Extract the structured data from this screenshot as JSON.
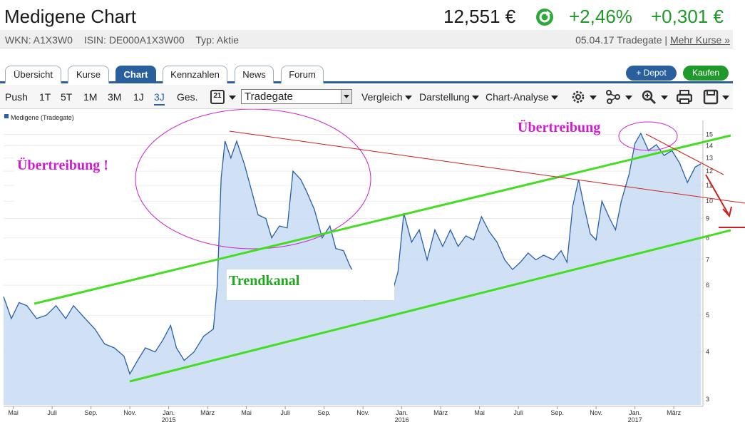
{
  "header": {
    "title": "Medigene Chart",
    "price": "12,551 €",
    "change_pct": "+2,46%",
    "change_abs": "+0,301 €",
    "status_icon": "refresh-icon",
    "up_color": "#1f9a2a"
  },
  "info": {
    "wkn": "WKN: A1X3W0",
    "isin": "ISIN: DE000A1X3W00",
    "typ": "Typ: Aktie",
    "date_exchange": "05.04.17 Tradegate |",
    "more_prices": "Mehr Kurse »"
  },
  "tabs": [
    {
      "label": "Übersicht",
      "active": false
    },
    {
      "label": "Kurse",
      "active": false
    },
    {
      "label": "Chart",
      "active": true
    },
    {
      "label": "Kennzahlen",
      "active": false
    },
    {
      "label": "News",
      "active": false
    },
    {
      "label": "Forum",
      "active": false
    }
  ],
  "actions": {
    "depot": "+ Depot",
    "buy": "Kaufen"
  },
  "toolbar": {
    "ranges": [
      "Push",
      "1T",
      "5T",
      "1M",
      "3M",
      "1J",
      "3J",
      "Ges."
    ],
    "active_range": "3J",
    "calendar_icon": "calendar-icon",
    "calendar_day": "21",
    "exchange": "Tradegate",
    "menus": [
      "Vergleich",
      "Darstellung",
      "Chart-Analyse"
    ],
    "icons": [
      "settings-gear-icon",
      "indicator-icon",
      "zoom-icon",
      "print-icon",
      "save-icon"
    ]
  },
  "chart_data": {
    "type": "area",
    "legend": "Medigene (Tradegate)",
    "legend_position": "top-left",
    "y_scale": "log",
    "ylim": [
      2.9,
      15.5
    ],
    "y_ticks": [
      3,
      4,
      5,
      6,
      7,
      8,
      9,
      10,
      11,
      12,
      13,
      14,
      15
    ],
    "x_ticks": [
      {
        "label": "Mai",
        "year": ""
      },
      {
        "label": "Juli",
        "year": ""
      },
      {
        "label": "Sep.",
        "year": ""
      },
      {
        "label": "Nov.",
        "year": ""
      },
      {
        "label": "Jan.",
        "year": "2015"
      },
      {
        "label": "März",
        "year": ""
      },
      {
        "label": "Mai",
        "year": ""
      },
      {
        "label": "Juli",
        "year": ""
      },
      {
        "label": "Sep.",
        "year": ""
      },
      {
        "label": "Nov.",
        "year": ""
      },
      {
        "label": "Jan.",
        "year": "2016"
      },
      {
        "label": "März",
        "year": ""
      },
      {
        "label": "Mai",
        "year": ""
      },
      {
        "label": "Juli",
        "year": ""
      },
      {
        "label": "Sep.",
        "year": ""
      },
      {
        "label": "Nov.",
        "year": ""
      },
      {
        "label": "Jan.",
        "year": "2017"
      },
      {
        "label": "März",
        "year": ""
      }
    ],
    "x_range": [
      0,
      36
    ],
    "series": [
      {
        "name": "Medigene (Tradegate)",
        "points": [
          [
            0,
            5.6
          ],
          [
            0.4,
            4.9
          ],
          [
            0.8,
            5.4
          ],
          [
            1.2,
            5.3
          ],
          [
            1.7,
            4.9
          ],
          [
            2.2,
            5.0
          ],
          [
            2.7,
            5.3
          ],
          [
            3.2,
            4.9
          ],
          [
            3.6,
            5.3
          ],
          [
            4.2,
            4.9
          ],
          [
            4.7,
            4.6
          ],
          [
            5.2,
            4.2
          ],
          [
            5.7,
            4.1
          ],
          [
            6.2,
            3.9
          ],
          [
            6.5,
            3.5
          ],
          [
            6.9,
            3.8
          ],
          [
            7.3,
            4.1
          ],
          [
            7.8,
            4.0
          ],
          [
            8.2,
            4.3
          ],
          [
            8.6,
            4.7
          ],
          [
            8.9,
            4.1
          ],
          [
            9.3,
            3.8
          ],
          [
            9.8,
            4.0
          ],
          [
            10.3,
            4.4
          ],
          [
            10.8,
            4.6
          ],
          [
            11.0,
            6.0
          ],
          [
            11.2,
            11.5
          ],
          [
            11.4,
            14.4
          ],
          [
            11.7,
            13.0
          ],
          [
            12.0,
            14.4
          ],
          [
            12.4,
            12.5
          ],
          [
            12.8,
            10.5
          ],
          [
            13.1,
            9.2
          ],
          [
            13.5,
            9.0
          ],
          [
            13.8,
            8.0
          ],
          [
            14.2,
            8.6
          ],
          [
            14.6,
            8.5
          ],
          [
            14.9,
            12.0
          ],
          [
            15.3,
            11.4
          ],
          [
            15.6,
            10.6
          ],
          [
            16.0,
            9.5
          ],
          [
            16.4,
            8.0
          ],
          [
            16.8,
            8.6
          ],
          [
            17.1,
            7.5
          ],
          [
            17.5,
            7.4
          ],
          [
            17.8,
            6.8
          ],
          [
            18.2,
            6.2
          ],
          [
            18.6,
            5.5
          ],
          [
            19.0,
            6.2
          ],
          [
            19.5,
            5.7
          ],
          [
            19.9,
            5.5
          ],
          [
            20.3,
            6.5
          ],
          [
            20.6,
            9.3
          ],
          [
            21.0,
            7.8
          ],
          [
            21.4,
            8.4
          ],
          [
            21.8,
            7.0
          ],
          [
            22.2,
            8.4
          ],
          [
            22.6,
            7.6
          ],
          [
            23.0,
            8.4
          ],
          [
            23.4,
            7.6
          ],
          [
            23.8,
            8.1
          ],
          [
            24.2,
            7.9
          ],
          [
            24.6,
            9.1
          ],
          [
            25.0,
            8.3
          ],
          [
            25.4,
            7.8
          ],
          [
            25.8,
            7.0
          ],
          [
            26.2,
            6.6
          ],
          [
            26.6,
            6.9
          ],
          [
            27.0,
            7.3
          ],
          [
            27.4,
            7.0
          ],
          [
            27.8,
            7.2
          ],
          [
            28.3,
            7.0
          ],
          [
            28.7,
            7.4
          ],
          [
            29.0,
            6.9
          ],
          [
            29.3,
            9.7
          ],
          [
            29.6,
            11.4
          ],
          [
            29.9,
            9.6
          ],
          [
            30.2,
            8.2
          ],
          [
            30.5,
            7.9
          ],
          [
            30.8,
            10.0
          ],
          [
            31.2,
            9.0
          ],
          [
            31.5,
            8.4
          ],
          [
            31.8,
            10.0
          ],
          [
            32.2,
            11.8
          ],
          [
            32.5,
            14.2
          ],
          [
            32.8,
            15.1
          ],
          [
            33.2,
            13.6
          ],
          [
            33.6,
            14.1
          ],
          [
            34.0,
            13.2
          ],
          [
            34.4,
            13.6
          ],
          [
            34.8,
            12.6
          ],
          [
            35.2,
            11.2
          ],
          [
            35.6,
            12.3
          ],
          [
            35.9,
            12.55
          ]
        ]
      }
    ],
    "annotations": [
      {
        "text": "Übertreibung !",
        "color": "#d21cd2"
      },
      {
        "text": "Übertreibung",
        "color": "#d21cd2"
      },
      {
        "text": "Trendkanal",
        "color": "#1ea81e"
      }
    ],
    "line_colors": {
      "price": "#2a5ea8",
      "fill": "#c8dcf4",
      "trend": "#44dd22",
      "resistance": "#cc2020",
      "ellipse": "#cc22cc"
    }
  }
}
